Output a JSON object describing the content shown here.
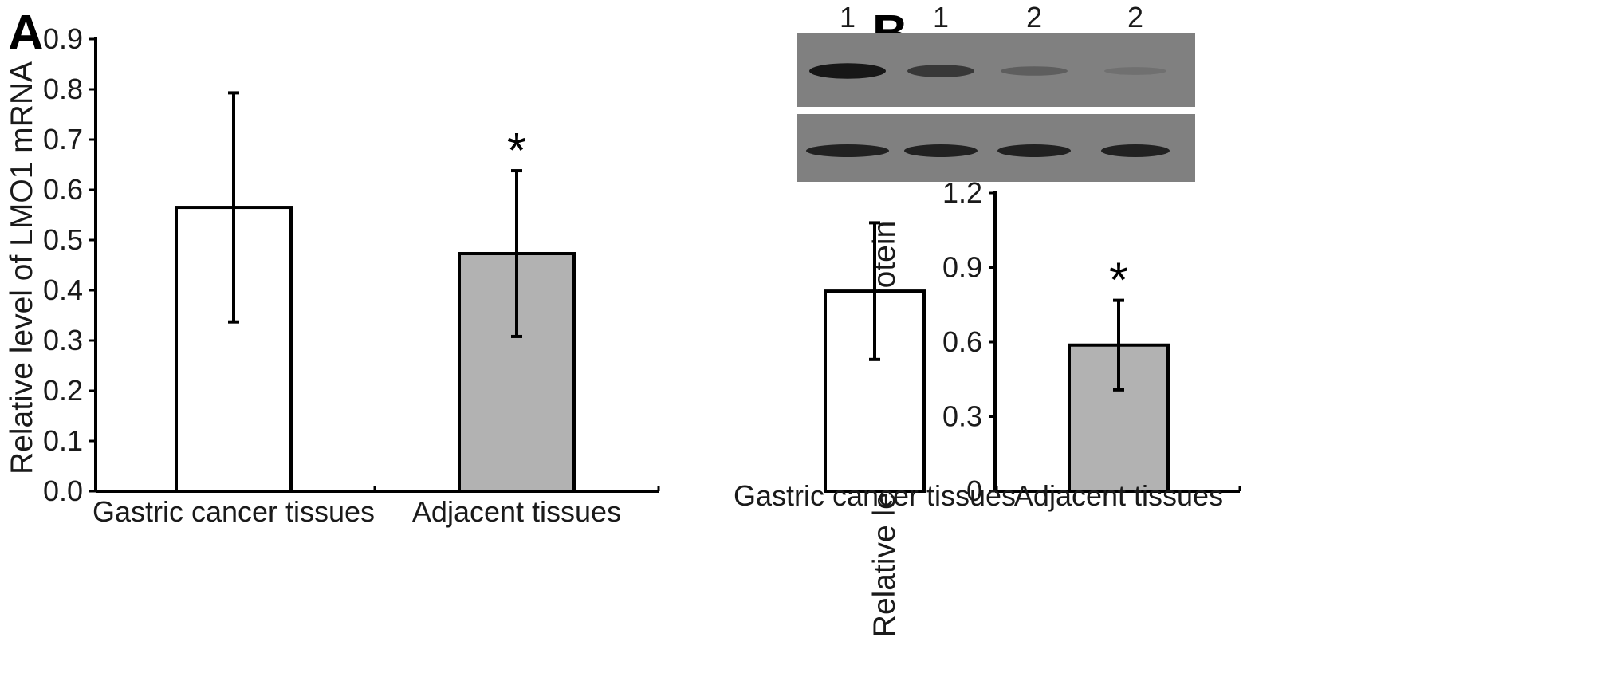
{
  "colors": {
    "axis": "#000000",
    "bar_tumor": "#ffffff",
    "bar_adjacent": "#b2b2b2",
    "blot_background": "#808080",
    "band": "#111111"
  },
  "chart_data": [
    {
      "panel": "A",
      "type": "bar",
      "categories": [
        "Gastric cancer tissues",
        "Adjacent tissues"
      ],
      "values": [
        0.565,
        0.473
      ],
      "error": [
        0.228,
        0.165
      ],
      "significance": [
        "",
        "*"
      ],
      "ylabel": "Relative level of LMO1 mRNA",
      "ylim": [
        0,
        0.9
      ],
      "yticks": [
        "0.0",
        "0.1",
        "0.2",
        "0.3",
        "0.4",
        "0.5",
        "0.6",
        "0.7",
        "0.8",
        "0.9"
      ],
      "grid": false
    },
    {
      "panel": "B",
      "type": "bar",
      "categories": [
        "Gastric cancer tissues",
        "Adjacent tissues"
      ],
      "values": [
        0.805,
        0.588
      ],
      "error": [
        0.275,
        0.18
      ],
      "significance": [
        "",
        "*"
      ],
      "ylabel": "Relative level of LMO1 protein",
      "ylim": [
        0,
        1.2
      ],
      "yticks": [
        "0",
        "0.3",
        "0.6",
        "0.9",
        "1.2"
      ],
      "grid": false,
      "western_blot": {
        "lane_labels": [
          "1",
          "1",
          "2",
          "2"
        ],
        "top_band_intensity": [
          0.95,
          0.65,
          0.3,
          0.15
        ],
        "bottom_band_intensity": [
          0.85,
          0.85,
          0.85,
          0.85
        ]
      }
    }
  ]
}
